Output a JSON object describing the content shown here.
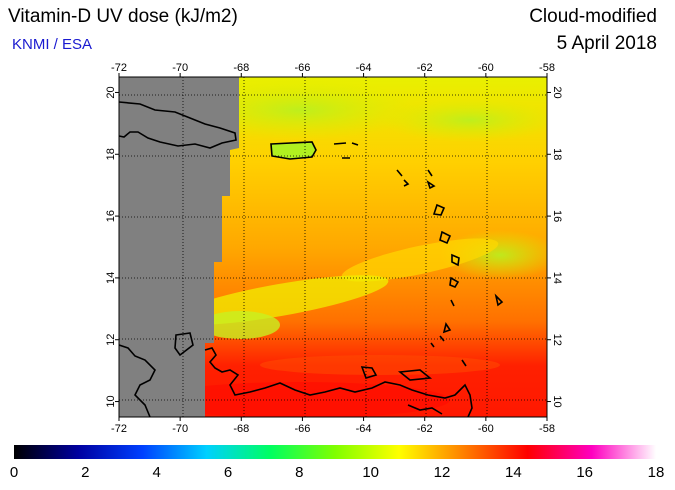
{
  "header": {
    "title": "Vitamin-D UV dose (kJ/m2)",
    "credit": "KNMI / ESA",
    "mode": "Cloud-modified",
    "date": "5 April 2018"
  },
  "axes": {
    "lon_ticks": [
      "-72",
      "-70",
      "-68",
      "-66",
      "-64",
      "-62",
      "-60",
      "-58"
    ],
    "lat_ticks": [
      "10",
      "12",
      "14",
      "16",
      "18",
      "20"
    ]
  },
  "colorbar": {
    "labels": [
      "0",
      "2",
      "4",
      "6",
      "8",
      "10",
      "12",
      "14",
      "16",
      "18"
    ],
    "stops": [
      "#000000",
      "#0000a0",
      "#0040ff",
      "#00d0ff",
      "#00ff60",
      "#80ff00",
      "#ffff00",
      "#ff8000",
      "#ff0000",
      "#ff00c0",
      "#ffffff"
    ]
  },
  "map": {
    "no_data_color": "#808080",
    "lon_range": [
      -72,
      -58
    ],
    "lat_range": [
      9.5,
      20.5
    ]
  }
}
